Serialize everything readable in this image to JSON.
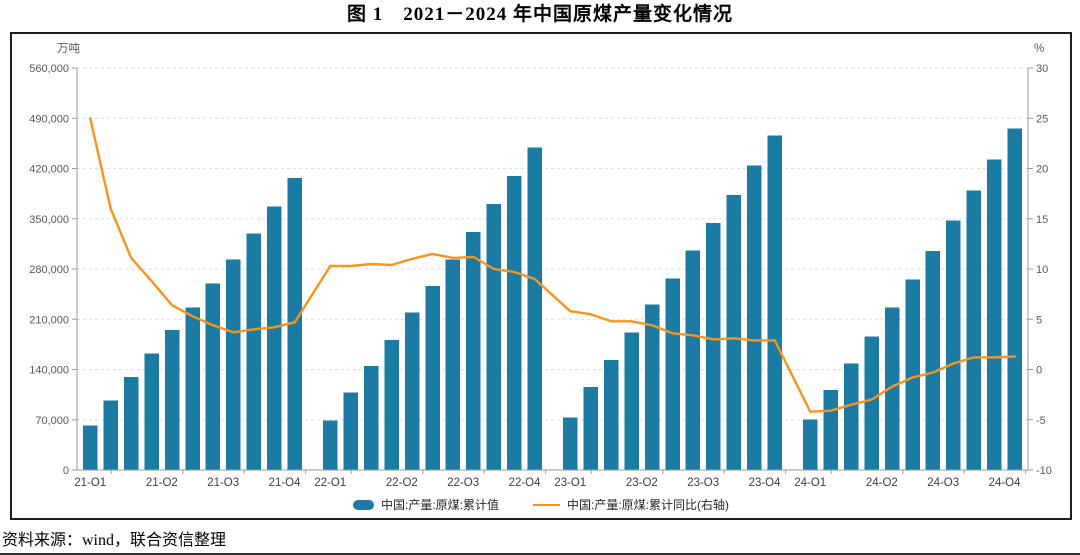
{
  "title": "图 1　2021－2024 年中国原煤产量变化情况",
  "source": "资料来源：wind，联合资信整理",
  "legend": {
    "bar_label": "中国:产量:原煤:累计值",
    "line_label": "中国:产量:原煤:累计同比(右轴)"
  },
  "colors": {
    "bar": "#1b7ba3",
    "line": "#f7941e",
    "grid": "#dedede",
    "axis": "#9a9a9a",
    "tick_text": "#595959",
    "unit_text": "#595959"
  },
  "chart_data": {
    "type": "bar+line combo, monthly cumulative values grouped by year",
    "title": "图 1　2021－2024 年中国原煤产量变化情况",
    "left_axis": {
      "unit": "万吨",
      "min": 0,
      "max": 560000,
      "step": 70000,
      "tick_labels": [
        "0",
        "70,000",
        "140,000",
        "210,000",
        "280,000",
        "350,000",
        "420,000",
        "490,000",
        "560,000"
      ]
    },
    "right_axis": {
      "unit": "%",
      "min": -10,
      "max": 30,
      "step": 5,
      "tick_labels": [
        "-10",
        "-5",
        "0",
        "5",
        "10",
        "15",
        "20",
        "25",
        "30"
      ]
    },
    "categories": [
      "21-Q1",
      "21-Q2",
      "21-Q3",
      "21-Q4",
      "22-Q1",
      "22-Q2",
      "22-Q3",
      "22-Q4",
      "23-Q1",
      "23-Q2",
      "23-Q3",
      "23-Q4",
      "24-Q1",
      "24-Q2",
      "24-Q3",
      "24-Q4"
    ],
    "years": [
      "2021",
      "2022",
      "2023",
      "2024"
    ],
    "months_per_year": 11,
    "grid": "horizontal dashed",
    "legend_position": "bottom-center",
    "series": [
      {
        "name": "中国:产量:原煤:累计值",
        "type": "bar",
        "axis": "left",
        "values_by_year": [
          [
            61800,
            97100,
            129800,
            162500,
            195100,
            226100,
            259700,
            293100,
            329700,
            367100,
            407100
          ],
          [
            68700,
            108300,
            144800,
            181200,
            219200,
            256200,
            293300,
            331700,
            370300,
            409400,
            449600
          ],
          [
            73400,
            115300,
            153300,
            191200,
            230300,
            267100,
            305700,
            344200,
            383200,
            424000,
            465800
          ],
          [
            70500,
            111100,
            148200,
            186300,
            226600,
            265700,
            305000,
            347600,
            389200,
            432400,
            475900
          ]
        ]
      },
      {
        "name": "中国:产量:原煤:累计同比(右轴)",
        "type": "line",
        "axis": "right",
        "values_by_year": [
          [
            25.0,
            16.0,
            11.1,
            8.8,
            6.4,
            5.3,
            4.4,
            3.7,
            4.0,
            4.2,
            4.7
          ],
          [
            10.3,
            10.3,
            10.5,
            10.4,
            11.0,
            11.5,
            11.1,
            11.2,
            10.0,
            9.7,
            9.0
          ],
          [
            5.8,
            5.5,
            4.8,
            4.8,
            4.4,
            3.6,
            3.4,
            3.0,
            3.1,
            2.9,
            2.9
          ],
          [
            -4.2,
            -4.1,
            -3.5,
            -3.0,
            -1.7,
            -0.8,
            -0.3,
            0.6,
            1.2,
            1.2,
            1.3
          ]
        ]
      }
    ]
  }
}
